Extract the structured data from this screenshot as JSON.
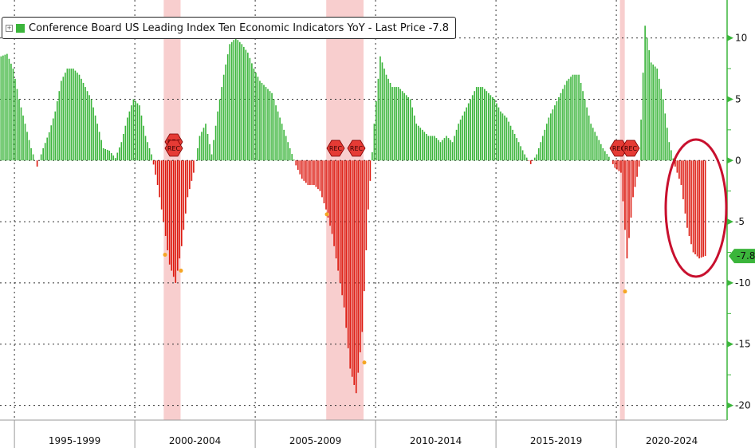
{
  "legend": {
    "expand_icon": "plus-box-icon",
    "label": "Conference Board US Leading Index Ten Economic Indicators YoY - Last Price -7.8"
  },
  "last_price_tag": "-7.8",
  "colors": {
    "positive": "#3bb53b",
    "negative": "#dd1a10",
    "recession": "#f7c6c6",
    "annotation": "#c8102e",
    "axis": "#3bb53b"
  },
  "chart_data": {
    "type": "bar",
    "title": "Conference Board US Leading Index Ten Economic Indicators YoY",
    "xlabel": "",
    "ylabel": "",
    "ylim": [
      -21.2,
      13.1
    ],
    "xlim": [
      1994.4,
      2024.6
    ],
    "yticks": [
      10,
      5,
      0,
      -5,
      -10,
      -15,
      -20
    ],
    "ytick_labels": [
      "10",
      "5",
      "0",
      "-5",
      "-10",
      "-15",
      "-20"
    ],
    "period_labels": [
      "1995-1999",
      "2000-2004",
      "2005-2009",
      "2010-2014",
      "2015-2019",
      "2020-2024"
    ],
    "period_bounds": [
      1995,
      2000,
      2005,
      2010,
      2015,
      2020,
      2025
    ],
    "grid": true,
    "legend_position": "top-left",
    "x_start": 1994.5,
    "x_step": 0.25,
    "values": [
      8.5,
      8.7,
      7.5,
      5,
      3,
      1,
      -0.5,
      1,
      2.3,
      4,
      6.5,
      7.5,
      7.5,
      7,
      6,
      5,
      3,
      1,
      0.8,
      0.2,
      1.5,
      3.5,
      5,
      4.5,
      2,
      0.5,
      -2,
      -5,
      -8.5,
      -10,
      -7,
      -3,
      -1,
      2,
      3,
      0.5,
      4,
      7,
      9.5,
      10,
      9.5,
      8.8,
      7.5,
      6.5,
      6,
      5.5,
      4,
      2.5,
      1,
      -0.4,
      -1.5,
      -2,
      -2,
      -2.5,
      -4,
      -6,
      -9,
      -12,
      -17,
      -19,
      -14,
      -4,
      3,
      8.5,
      7,
      6,
      6,
      5.5,
      5,
      3,
      2.5,
      2,
      2,
      1.5,
      2,
      1.5,
      3,
      4,
      5,
      6,
      6,
      5.5,
      5,
      4,
      3.5,
      2.5,
      1.5,
      0.5,
      -0.3,
      0.5,
      2,
      3.5,
      4.5,
      5.5,
      6.5,
      7,
      7,
      5,
      3,
      2,
      1,
      0.3,
      -0.6,
      -1,
      -8,
      -3,
      -0.5,
      11,
      8,
      7.5,
      5,
      1.5,
      -0.5,
      -2,
      -5.5,
      -7.5,
      -8,
      -7.8
    ],
    "recessions": [
      [
        2001.2,
        2001.9
      ],
      [
        2007.95,
        2009.5
      ],
      [
        2020.15,
        2020.35
      ]
    ],
    "recession_label": "REC",
    "last_value": -7.8
  }
}
